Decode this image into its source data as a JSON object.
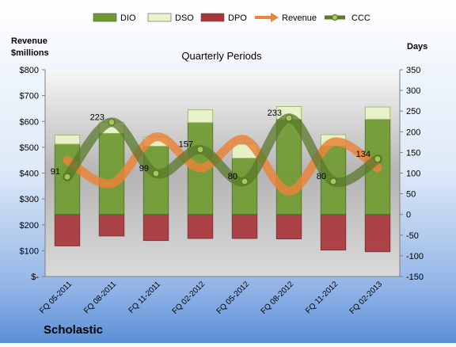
{
  "chart_data": {
    "type": "bar",
    "title": "Quarterly Periods",
    "company": "Scholastic",
    "y_left_label_line1": "Revenue",
    "y_left_label_line2": "$millions",
    "y_right_label": "Days",
    "categories": [
      "FQ 05-2011",
      "FQ 08-2011",
      "FQ 11-2011",
      "FQ 02-2012",
      "FQ 05-2012",
      "FQ 08-2012",
      "FQ 11-2012",
      "FQ 02-2013"
    ],
    "left_axis": {
      "min": 0,
      "max": 800,
      "step": 100,
      "tick_labels": [
        "$-",
        "$100",
        "$200",
        "$300",
        "$400",
        "$500",
        "$600",
        "$700",
        "$800"
      ]
    },
    "right_axis": {
      "min": -150,
      "max": 350,
      "step": 50,
      "tick_labels": [
        "-150",
        "-100",
        "-50",
        "0",
        "50",
        "100",
        "150",
        "200",
        "250",
        "300",
        "350"
      ]
    },
    "series": [
      {
        "name": "DIO",
        "kind": "stacked-bar",
        "axis": "right",
        "color": "#6f9a2e",
        "values": [
          170,
          196,
          165,
          222,
          136,
          230,
          166,
          230
        ]
      },
      {
        "name": "DSO",
        "kind": "stacked-bar",
        "axis": "right",
        "color": "#e9f4c9",
        "values": [
          22,
          27,
          22,
          31,
          34,
          31,
          27,
          30
        ]
      },
      {
        "name": "DPO",
        "kind": "negative-bar",
        "axis": "right",
        "color": "#a8343a",
        "values": [
          -76,
          -52,
          -63,
          -58,
          -58,
          -59,
          -86,
          -90
        ]
      },
      {
        "name": "Revenue",
        "kind": "line",
        "axis": "left",
        "color": "#e9843a",
        "values": [
          450,
          360,
          540,
          420,
          530,
          330,
          520,
          420
        ]
      },
      {
        "name": "CCC",
        "kind": "line",
        "axis": "right",
        "color": "#5a7a2c",
        "values": [
          91,
          223,
          99,
          157,
          80,
          233,
          80,
          134
        ]
      }
    ],
    "data_labels": [
      "91",
      "223",
      "99",
      "157",
      "80",
      "233",
      "80",
      "134"
    ],
    "legend": {
      "position": "top",
      "items": [
        "DIO",
        "DSO",
        "DPO",
        "Revenue",
        "CCC"
      ]
    },
    "grid": false
  }
}
